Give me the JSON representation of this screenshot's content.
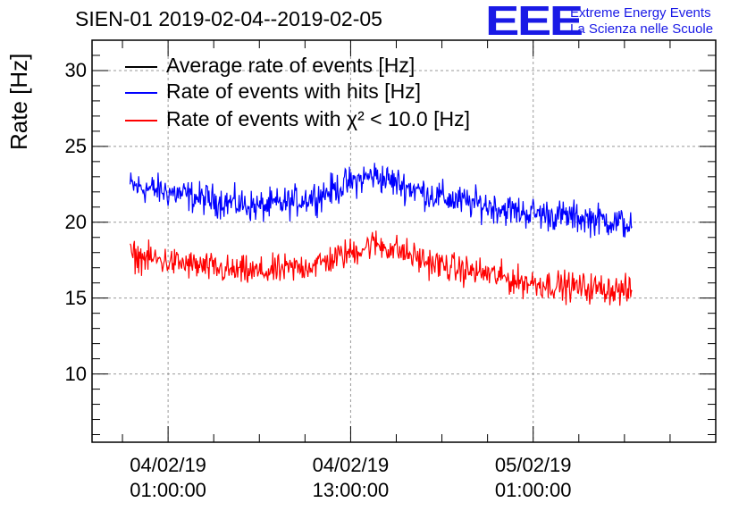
{
  "chart_data": {
    "type": "line",
    "title": "SIEN-01 2019-02-04--2019-02-05",
    "ylabel": "Rate [Hz]",
    "xlabel": "",
    "ylim": [
      5.5,
      32
    ],
    "xlim_hours": [
      -5,
      36
    ],
    "yticks": [
      10,
      15,
      20,
      25,
      30
    ],
    "xticks": [
      {
        "hours": 0,
        "line1": "04/02/19",
        "line2": "01:00:00"
      },
      {
        "hours": 12,
        "line1": "04/02/19",
        "line2": "13:00:00"
      },
      {
        "hours": 24,
        "line1": "05/02/19",
        "line2": "01:00:00"
      }
    ],
    "grid": true,
    "legend_position": "top-left",
    "series": [
      {
        "name": "Average rate of events [Hz]",
        "color": "#000000",
        "hours": [],
        "values": []
      },
      {
        "name": "Rate of events with hits [Hz]",
        "color": "#0000ff",
        "hours": [
          -2.5,
          0,
          2,
          4,
          6,
          8,
          10,
          12,
          13.5,
          15,
          17,
          19,
          21,
          23,
          25,
          27,
          29,
          30.5
        ],
        "values": [
          22.4,
          22.0,
          21.6,
          21.3,
          21.0,
          21.3,
          21.8,
          22.6,
          23.1,
          22.6,
          21.9,
          21.4,
          21.1,
          20.7,
          20.5,
          20.3,
          20.1,
          19.8
        ],
        "noise": 0.8
      },
      {
        "name": "Rate of events with χ² < 10.0 [Hz]",
        "color": "#ff0000",
        "hours": [
          -2.5,
          0,
          2,
          4,
          6,
          8,
          10,
          12,
          13.5,
          15,
          17,
          19,
          21,
          23,
          25,
          27,
          29,
          30.5
        ],
        "values": [
          17.8,
          17.4,
          17.1,
          16.8,
          16.7,
          16.9,
          17.3,
          18.0,
          18.6,
          18.2,
          17.4,
          16.9,
          16.6,
          16.1,
          15.9,
          15.7,
          15.6,
          15.4
        ],
        "noise": 0.75
      }
    ]
  },
  "legend": {
    "avg_label": "Average rate of events [Hz]",
    "hits_label": "Rate of events with hits [Hz]",
    "chi2_label": "Rate of events with χ² < 10.0 [Hz]"
  },
  "logo": {
    "text": "EEE",
    "line1": "Extreme Energy Events",
    "line2": "La Scienza nelle Scuole",
    "color": "#1a1ae6"
  }
}
